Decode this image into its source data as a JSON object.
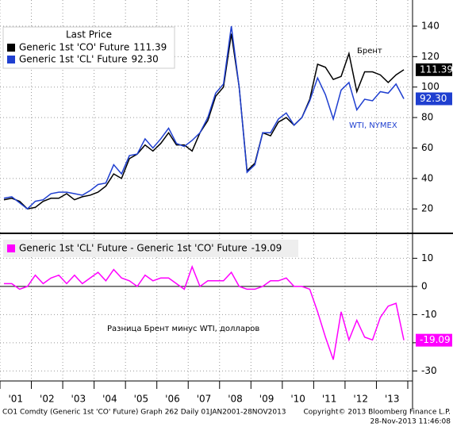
{
  "chart_data": [
    {
      "type": "line",
      "legend_title": "Last Price",
      "annotations": [
        "Брент",
        "WTI, NYMEX"
      ],
      "ylim": [
        5,
        153
      ],
      "yticks": [
        20,
        40,
        60,
        80,
        100,
        120,
        140
      ],
      "grid": true,
      "series": [
        {
          "name": "Generic 1st 'CO' Future",
          "color": "#000000",
          "values": [
            26,
            27,
            25,
            20,
            21,
            25,
            27,
            27,
            30,
            26,
            28,
            29,
            31,
            35,
            43,
            40,
            53,
            56,
            62,
            58,
            63,
            70,
            62,
            62,
            58,
            70,
            78,
            94,
            100,
            135,
            100,
            45,
            50,
            70,
            68,
            77,
            80,
            75,
            80,
            92,
            115,
            113,
            105,
            107,
            122,
            97,
            110,
            110,
            108,
            103,
            108,
            111.39
          ],
          "value_labels": [
            null,
            null,
            null,
            null,
            null,
            null,
            null,
            null,
            null,
            null,
            null,
            null,
            null,
            null,
            null,
            null,
            null,
            null,
            null,
            null,
            null,
            null,
            null,
            null,
            null,
            null,
            null,
            null,
            null,
            null,
            null,
            null,
            null,
            null,
            null,
            null,
            null,
            null,
            null,
            null,
            null,
            null,
            null,
            null,
            null,
            null,
            null,
            null,
            null,
            null,
            null,
            "111.39"
          ]
        },
        {
          "name": "Generic 1st 'CL' Future",
          "color": "#1f3fd0",
          "values": [
            27,
            28,
            24,
            20,
            25,
            26,
            30,
            31,
            31,
            30,
            29,
            32,
            36,
            37,
            49,
            43,
            55,
            56,
            66,
            60,
            66,
            73,
            63,
            61,
            65,
            70,
            80,
            96,
            102,
            140,
            100,
            44,
            49,
            70,
            70,
            79,
            83,
            75,
            80,
            91,
            106,
            95,
            79,
            98,
            103,
            85,
            92,
            91,
            97,
            96,
            102,
            92.3
          ],
          "value_labels": [
            null,
            null,
            null,
            null,
            null,
            null,
            null,
            null,
            null,
            null,
            null,
            null,
            null,
            null,
            null,
            null,
            null,
            null,
            null,
            null,
            null,
            null,
            null,
            null,
            null,
            null,
            null,
            null,
            null,
            null,
            null,
            null,
            null,
            null,
            null,
            null,
            null,
            null,
            null,
            null,
            null,
            null,
            null,
            null,
            null,
            null,
            null,
            null,
            null,
            null,
            null,
            "92.30"
          ]
        }
      ]
    },
    {
      "type": "line",
      "annotation": "Разница Брент минус WTI, долларов",
      "categories": [
        null,
        null,
        "'01",
        null,
        null,
        null,
        "'02",
        null,
        null,
        null,
        "'03",
        null,
        null,
        null,
        "'04",
        null,
        null,
        null,
        "'05",
        null,
        null,
        null,
        "'06",
        null,
        null,
        null,
        "'07",
        null,
        null,
        null,
        "'08",
        null,
        null,
        null,
        "'09",
        null,
        null,
        null,
        "'10",
        null,
        null,
        null,
        "'11",
        null,
        null,
        null,
        "'12",
        null,
        null,
        null,
        "'13",
        null
      ],
      "ylim": [
        -33,
        18
      ],
      "yticks": [
        -30,
        -20,
        -10,
        0,
        10
      ],
      "grid": true,
      "series": [
        {
          "name": "Generic 1st 'CL' Future - Generic 1st 'CO' Future",
          "color": "#ff00ff",
          "values": [
            1,
            1,
            -1,
            0,
            4,
            1,
            3,
            4,
            1,
            4,
            1,
            3,
            5,
            2,
            6,
            3,
            2,
            0,
            4,
            2,
            3,
            3,
            1,
            -1,
            7,
            0,
            2,
            2,
            2,
            5,
            0,
            -1,
            -1,
            0,
            2,
            2,
            3,
            0,
            0,
            -1,
            -9,
            -18,
            -26,
            -9,
            -19,
            -12,
            -18,
            -19,
            -11,
            -7,
            -6,
            -19.09
          ],
          "value_labels": [
            null,
            null,
            null,
            null,
            null,
            null,
            null,
            null,
            null,
            null,
            null,
            null,
            null,
            null,
            null,
            null,
            null,
            null,
            null,
            null,
            null,
            null,
            null,
            null,
            null,
            null,
            null,
            null,
            null,
            null,
            null,
            null,
            null,
            null,
            null,
            null,
            null,
            null,
            null,
            null,
            null,
            null,
            null,
            null,
            null,
            null,
            null,
            null,
            null,
            null,
            null,
            "-19.09"
          ]
        }
      ]
    }
  ],
  "footer": {
    "left": "CO1 Comdty (Generic 1st 'CO' Future) Graph 262  Daily 01JAN2001-28NOV2013",
    "copyright": "Copyright© 2013 Bloomberg Finance L.P.",
    "timestamp": "28-Nov-2013 11:46:08"
  }
}
